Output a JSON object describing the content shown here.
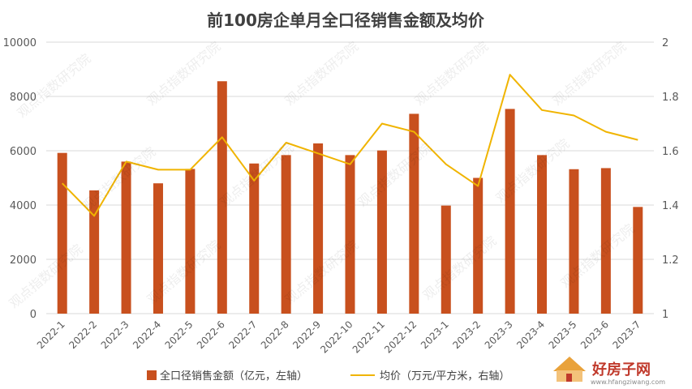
{
  "chart_data": {
    "type": "bar",
    "title": "前100房企单月全口径销售金额及均价",
    "categories": [
      "2022-1",
      "2022-2",
      "2022-3",
      "2022-4",
      "2022-5",
      "2022-6",
      "2022-7",
      "2022-8",
      "2022-9",
      "2022-10",
      "2022-11",
      "2022-12",
      "2023-1",
      "2023-2",
      "2023-3",
      "2023-4",
      "2023-5",
      "2023-6",
      "2023-7"
    ],
    "series": [
      {
        "name": "全口径销售金额（亿元，左轴）",
        "type": "bar",
        "axis": "left",
        "color": "#c8501e",
        "values": [
          5920,
          4540,
          5600,
          4800,
          5330,
          8560,
          5530,
          5840,
          6270,
          5840,
          6010,
          7360,
          3980,
          5000,
          7540,
          5840,
          5320,
          5360,
          3930
        ]
      },
      {
        "name": "均价（万元/平方米，右轴）",
        "type": "line",
        "axis": "right",
        "color": "#f0b400",
        "values": [
          1.48,
          1.36,
          1.56,
          1.53,
          1.53,
          1.65,
          1.49,
          1.63,
          1.59,
          1.55,
          1.7,
          1.67,
          1.55,
          1.47,
          1.88,
          1.75,
          1.73,
          1.67,
          1.64
        ]
      }
    ],
    "yleft": {
      "lim": [
        0,
        10000
      ],
      "ticks": [
        0,
        2000,
        4000,
        6000,
        8000,
        10000
      ]
    },
    "yright": {
      "lim": [
        1,
        2
      ],
      "ticks": [
        "1",
        "1.2",
        "1.4",
        "1.6",
        "1.8",
        "2"
      ]
    },
    "grid": true,
    "legend": "bottom"
  },
  "watermark": {
    "text": "观点指数研究院"
  },
  "logo": {
    "name": "好房子网",
    "url": "www.hfangziwang.com"
  }
}
